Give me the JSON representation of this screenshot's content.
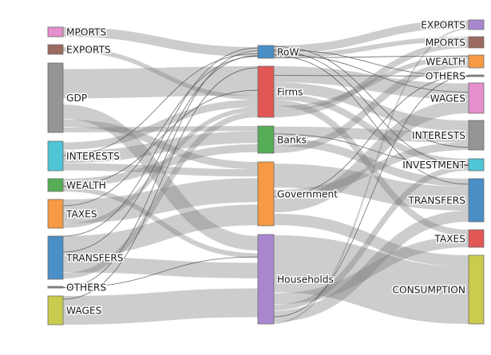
{
  "diagram": {
    "type": "sankey",
    "columns": [
      {
        "side": "left",
        "nodes": [
          {
            "id": "mports_in",
            "label": "MPORTS",
            "color": "#e68fcd"
          },
          {
            "id": "exports_in",
            "label": "EXPORTS",
            "color": "#9c6b60"
          },
          {
            "id": "gdp",
            "label": "GDP",
            "color": "#959595"
          },
          {
            "id": "interests_in",
            "label": "INTERESTS",
            "color": "#4ec6d6"
          },
          {
            "id": "wealth_in",
            "label": "WEALTH",
            "color": "#55ad55"
          },
          {
            "id": "taxes_in",
            "label": "TAXES",
            "color": "#f79a45"
          },
          {
            "id": "transfers_in",
            "label": "TRANSFERS",
            "color": "#4a8fc6"
          },
          {
            "id": "others_in",
            "label": "OTHERS",
            "color": "#8a8a8a"
          },
          {
            "id": "wages_in",
            "label": "WAGES",
            "color": "#c9cc4e"
          }
        ]
      },
      {
        "side": "middle",
        "nodes": [
          {
            "id": "row",
            "label": "RoW",
            "color": "#4a8fc6"
          },
          {
            "id": "firms",
            "label": "Firms",
            "color": "#e25656"
          },
          {
            "id": "banks",
            "label": "Banks",
            "color": "#55ad55"
          },
          {
            "id": "government",
            "label": "Government",
            "color": "#f79a45"
          },
          {
            "id": "households",
            "label": "Households",
            "color": "#a987cf"
          }
        ]
      },
      {
        "side": "right",
        "nodes": [
          {
            "id": "exports_out",
            "label": "EXPORTS",
            "color": "#a987cf"
          },
          {
            "id": "mports_out",
            "label": "MPORTS",
            "color": "#9c6b60"
          },
          {
            "id": "wealth_out",
            "label": "WEALTH",
            "color": "#f79a45"
          },
          {
            "id": "others_out",
            "label": "OTHERS",
            "color": "#8a8a8a"
          },
          {
            "id": "wages_out",
            "label": "WAGES",
            "color": "#e68fcd"
          },
          {
            "id": "interests_out",
            "label": "INTERESTS",
            "color": "#959595"
          },
          {
            "id": "investment_out",
            "label": "INVESTMENT",
            "color": "#4ec6d6"
          },
          {
            "id": "transfers_out",
            "label": "TRANSFERS",
            "color": "#4a8fc6"
          },
          {
            "id": "taxes_out",
            "label": "TAXES",
            "color": "#e25656"
          },
          {
            "id": "consumption_out",
            "label": "CONSUMPTION",
            "color": "#c9cc4e"
          }
        ]
      }
    ]
  }
}
